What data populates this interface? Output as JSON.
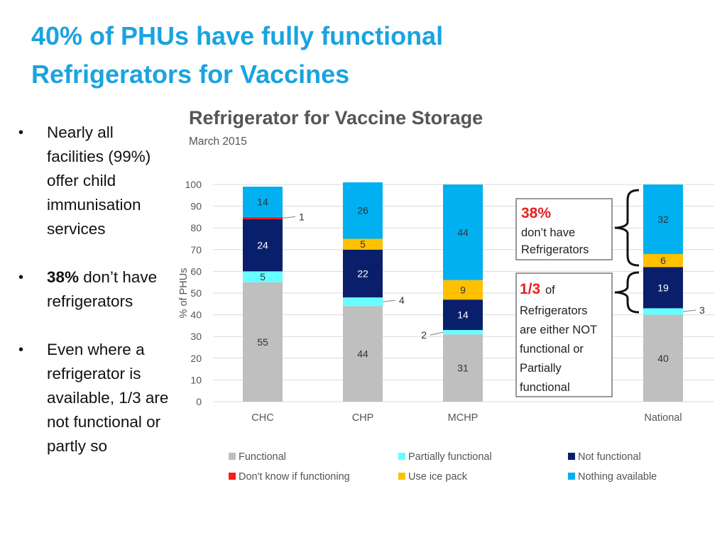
{
  "slide": {
    "title_line1": "40% of PHUs have fully functional",
    "title_line2": "Refrigerators for Vaccines"
  },
  "bullets": [
    {
      "bold": "",
      "text": "Nearly all facilities (99%) offer child immunisation services"
    },
    {
      "bold": "38%",
      "text": " don’t have refrigerators"
    },
    {
      "bold": "",
      "text": "Even where a refrigerator is available, 1/3 are not functional or partly so"
    }
  ],
  "chart_data": {
    "type": "bar",
    "stacked": true,
    "title": "Refrigerator for Vaccine Storage",
    "subtitle": "March 2015",
    "xlabel": "",
    "ylabel": "% of PHUs",
    "ylim": [
      0,
      100
    ],
    "yticks": [
      0,
      10,
      20,
      30,
      40,
      50,
      60,
      70,
      80,
      90,
      100
    ],
    "grid": true,
    "legend_position": "bottom",
    "categories": [
      "CHC",
      "CHP",
      "MCHP",
      "National"
    ],
    "series": [
      {
        "name": "Functional",
        "color": "#bfbfbf",
        "values": [
          55,
          44,
          31,
          40
        ]
      },
      {
        "name": "Partially functional",
        "color": "#66ffff",
        "values": [
          5,
          4,
          2,
          3
        ]
      },
      {
        "name": "Not functional",
        "color": "#0a1f6b",
        "values": [
          24,
          22,
          14,
          19
        ]
      },
      {
        "name": "Don't know if functioning",
        "color": "#ff1a1a",
        "values": [
          1,
          0,
          0,
          0
        ]
      },
      {
        "name": "Use ice pack",
        "color": "#ffc000",
        "values": [
          0,
          5,
          9,
          6
        ]
      },
      {
        "name": "Nothing available",
        "color": "#00b0f0",
        "values": [
          14,
          26,
          44,
          32
        ]
      }
    ],
    "annotations": {
      "box1_highlight": "38%",
      "box1_text": [
        "don’t have",
        "Refrigerators"
      ],
      "box2_highlight": "1/3",
      "box2_after": " of",
      "box2_text": [
        "Refrigerators",
        "are either NOT",
        "functional or",
        "Partially",
        "functional"
      ]
    }
  },
  "colors": {
    "title": "#1aa3e0",
    "highlight": "#e8201f"
  }
}
